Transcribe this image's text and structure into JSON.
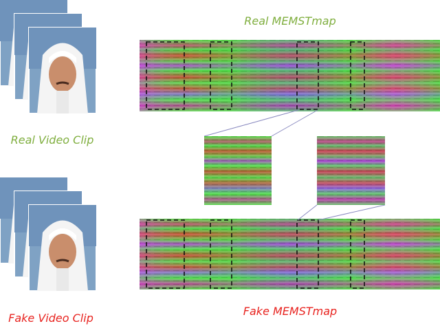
{
  "real_map_label": "Real MEMSTmap",
  "real_clip_label": "Real Video Clip",
  "fake_clip_label": "Fake Video Clip",
  "fake_map_label": "Fake MEMSTmap"
}
